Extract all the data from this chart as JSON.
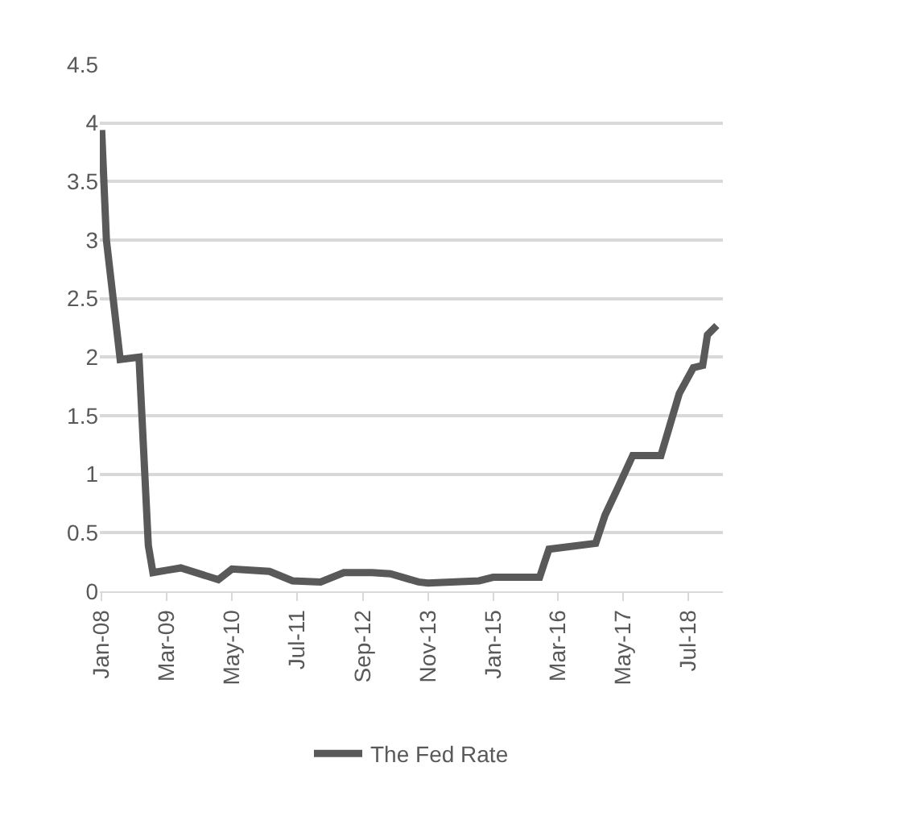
{
  "chart_data": {
    "type": "line",
    "x": [
      "2008-01",
      "2008-02",
      "2008-05",
      "2008-09",
      "2008-11",
      "2008-12",
      "2009-03",
      "2009-06",
      "2010-02",
      "2010-05",
      "2011-01",
      "2011-06",
      "2011-12",
      "2012-05",
      "2012-11",
      "2013-03",
      "2013-09",
      "2013-11",
      "2014-10",
      "2015-01",
      "2015-11",
      "2015-12",
      "2016-01",
      "2016-11",
      "2017-01",
      "2017-04",
      "2017-07",
      "2018-01",
      "2018-03",
      "2018-05",
      "2018-08",
      "2018-10",
      "2018-11",
      "2019-01"
    ],
    "series": [
      {
        "name": "The Fed Rate",
        "color": "#595959",
        "values": [
          3.94,
          3.0,
          1.98,
          2.0,
          0.39,
          0.16,
          0.18,
          0.2,
          0.1,
          0.19,
          0.17,
          0.09,
          0.08,
          0.16,
          0.16,
          0.15,
          0.08,
          0.07,
          0.09,
          0.12,
          0.12,
          0.24,
          0.36,
          0.41,
          0.65,
          0.9,
          1.16,
          1.16,
          1.42,
          1.69,
          1.91,
          1.93,
          2.19,
          2.27
        ]
      }
    ],
    "xlim": [
      "2007-12-20",
      "2019-02-10"
    ],
    "xticks": [
      {
        "value": "2008-01-01",
        "label": "Jan-08"
      },
      {
        "value": "2009-03-01",
        "label": "Mar-09"
      },
      {
        "value": "2010-05-01",
        "label": "May-10"
      },
      {
        "value": "2011-07-01",
        "label": "Jul-11"
      },
      {
        "value": "2012-09-01",
        "label": "Sep-12"
      },
      {
        "value": "2013-11-01",
        "label": "Nov-13"
      },
      {
        "value": "2015-01-01",
        "label": "Jan-15"
      },
      {
        "value": "2016-03-01",
        "label": "Mar-16"
      },
      {
        "value": "2017-05-01",
        "label": "May-17"
      },
      {
        "value": "2018-07-01",
        "label": "Jul-18"
      }
    ],
    "ylim": [
      0,
      4.5
    ],
    "yticks": [
      0,
      0.5,
      1,
      1.5,
      2,
      2.5,
      3,
      3.5,
      4,
      4.5
    ],
    "grid": "y",
    "legend": "bottom",
    "marker": "none",
    "line_style": "solid"
  }
}
